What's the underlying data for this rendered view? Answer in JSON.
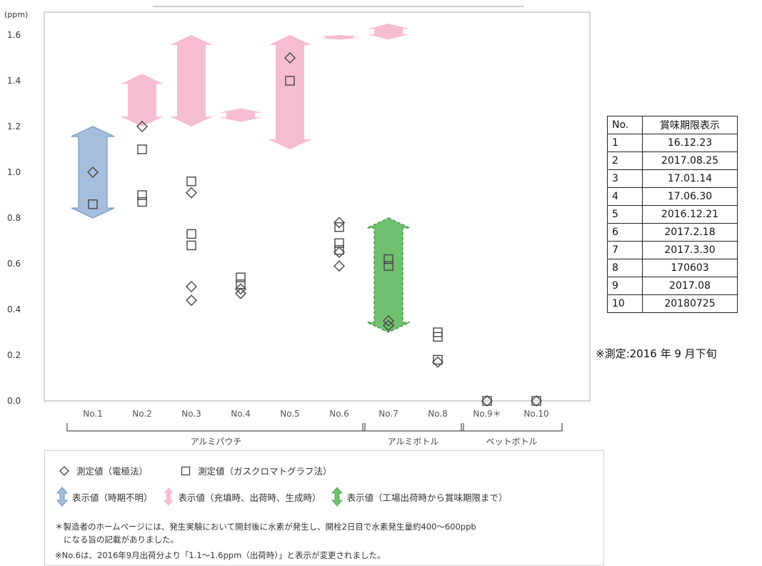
{
  "chart_data": {
    "type": "scatter",
    "y_unit": "(ppm)",
    "ylim": [
      0.0,
      1.6
    ],
    "y_ticks": [
      "0.0",
      "0.2",
      "0.4",
      "0.6",
      "0.8",
      "1.0",
      "1.2",
      "1.4",
      "1.6"
    ],
    "categories": [
      "No.1",
      "No.2",
      "No.3",
      "No.4",
      "No.5",
      "No.6",
      "No.7",
      "No.8",
      "No.9＊",
      "No.10"
    ],
    "groups": [
      {
        "label": "アルミパウチ",
        "from": 0,
        "to": 5
      },
      {
        "label": "アルミボトル",
        "from": 6,
        "to": 7
      },
      {
        "label": "ペットボトル",
        "from": 8,
        "to": 9
      }
    ],
    "series": [
      {
        "name": "測定値（電極法）",
        "marker": "diamond",
        "points": [
          [
            0,
            1.0
          ],
          [
            1,
            1.2
          ],
          [
            2,
            0.91
          ],
          [
            2,
            0.5
          ],
          [
            2,
            0.44
          ],
          [
            3,
            0.47
          ],
          [
            3,
            0.49
          ],
          [
            4,
            1.5
          ],
          [
            5,
            0.78
          ],
          [
            5,
            0.65
          ],
          [
            5,
            0.59
          ],
          [
            6,
            0.35
          ],
          [
            6,
            0.33
          ],
          [
            7,
            0.17
          ],
          [
            8,
            0.0
          ],
          [
            9,
            0.0
          ]
        ]
      },
      {
        "name": "測定値（ガスクロマトグラフ法）",
        "marker": "square",
        "points": [
          [
            0,
            0.86
          ],
          [
            1,
            1.1
          ],
          [
            1,
            0.9
          ],
          [
            1,
            0.87
          ],
          [
            2,
            0.96
          ],
          [
            2,
            0.73
          ],
          [
            2,
            0.68
          ],
          [
            3,
            0.54
          ],
          [
            3,
            0.51
          ],
          [
            4,
            1.4
          ],
          [
            5,
            0.76
          ],
          [
            5,
            0.69
          ],
          [
            5,
            0.66
          ],
          [
            6,
            0.62
          ],
          [
            6,
            0.59
          ],
          [
            7,
            0.3
          ],
          [
            7,
            0.28
          ],
          [
            7,
            0.18
          ],
          [
            8,
            0.0
          ],
          [
            9,
            0.0
          ]
        ]
      }
    ],
    "ranges": [
      {
        "index": 0,
        "low": 0.8,
        "high": 1.2,
        "type": "blue"
      },
      {
        "index": 1,
        "low": 1.2,
        "high": 1.43,
        "type": "pink"
      },
      {
        "index": 2,
        "low": 1.2,
        "high": 1.6,
        "type": "pink"
      },
      {
        "index": 3,
        "low": 1.22,
        "high": 1.28,
        "type": "pink"
      },
      {
        "index": 4,
        "low": 1.1,
        "high": 1.6,
        "type": "pink"
      },
      {
        "index": 5,
        "low": 1.58,
        "high": 1.6,
        "type": "pink"
      },
      {
        "index": 6,
        "low": 1.58,
        "high": 1.65,
        "type": "pink"
      },
      {
        "index": 6,
        "low": 0.3,
        "high": 0.8,
        "type": "green"
      }
    ],
    "colors": {
      "blue": "#a6bedd",
      "pink": "#f6bcd2",
      "green": "#6fc06f",
      "marker": "#444444"
    }
  },
  "side_table": {
    "headers": [
      "No.",
      "賞味期限表示"
    ],
    "rows": [
      [
        "1",
        "16.12.23"
      ],
      [
        "2",
        "2017.08.25"
      ],
      [
        "3",
        "17.01.14"
      ],
      [
        "4",
        "17.06.30"
      ],
      [
        "5",
        "2016.12.21"
      ],
      [
        "6",
        "2017.2.18"
      ],
      [
        "7",
        "2017.3.30"
      ],
      [
        "8",
        "170603"
      ],
      [
        "9",
        "2017.08"
      ],
      [
        "10",
        "20180725"
      ]
    ]
  },
  "measurement_note": "※測定:2016 年 9 月下旬",
  "legend": {
    "diamond_label": "測定値（電極法）",
    "square_label": "測定値（ガスクロマトグラフ法）",
    "blue_label": "表示値（時期不明）",
    "pink_label": "表示値（充填時、出荷時、生成時）",
    "green_label": "表示値（工場出荷時から賞味期限まで）",
    "note1_line1": "＊製造者のホームページには、発生実験において開封後に水素が発生し、開栓2日目で水素発生量約400～600ppb",
    "note1_line2": "になる旨の記載がありました。",
    "note2": "※No.6は、2016年9月出荷分より「1.1～1.6ppm（出荷時）」と表示が変更されました。"
  }
}
